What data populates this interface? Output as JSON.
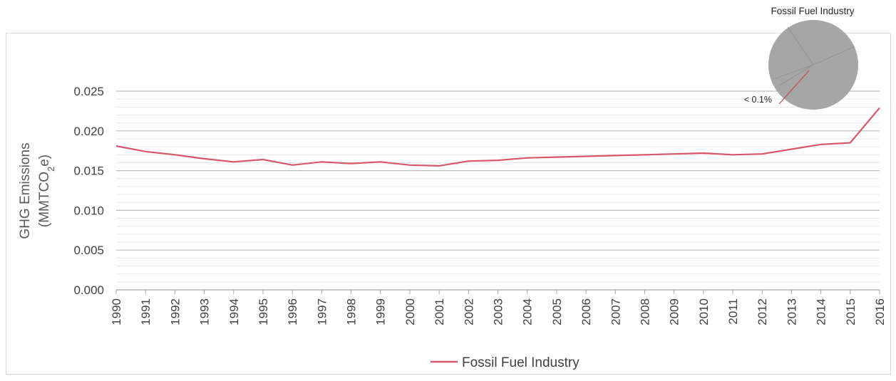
{
  "chart_data": [
    {
      "type": "line",
      "ylabel_line1": "GHG Emissions",
      "ylabel_line2_prefix": "(MMTCO",
      "ylabel_line2_sub": "2",
      "ylabel_line2_suffix": "e)",
      "ylim": [
        0,
        0.025
      ],
      "y_ticks": [
        "0.000",
        "0.005",
        "0.010",
        "0.015",
        "0.020",
        "0.025"
      ],
      "y_tick_values": [
        0,
        0.005,
        0.01,
        0.015,
        0.02,
        0.025
      ],
      "x": [
        "1990",
        "1991",
        "1992",
        "1993",
        "1994",
        "1995",
        "1996",
        "1997",
        "1998",
        "1999",
        "2000",
        "2001",
        "2002",
        "2003",
        "2004",
        "2005",
        "2006",
        "2007",
        "2008",
        "2009",
        "2010",
        "2011",
        "2012",
        "2013",
        "2014",
        "2015",
        "2016"
      ],
      "series": [
        {
          "name": "Fossil Fuel Industry",
          "color": "#d6576b",
          "values": [
            0.0181,
            0.0174,
            0.017,
            0.0165,
            0.0161,
            0.0164,
            0.0157,
            0.0161,
            0.0159,
            0.0161,
            0.0157,
            0.0156,
            0.0162,
            0.0163,
            0.0166,
            0.0167,
            0.0168,
            0.0169,
            0.017,
            0.0171,
            0.0172,
            0.017,
            0.0171,
            0.0177,
            0.0183,
            0.0185,
            0.0229
          ]
        }
      ],
      "grid": true,
      "legend_position": "bottom"
    },
    {
      "type": "pie",
      "title": "Fossil Fuel Industry",
      "highlight_label": "< 0.1%",
      "slice_fraction_percent": 0.1,
      "base_color": "#a6a6a6",
      "highlight_color": "#c0504d"
    }
  ]
}
